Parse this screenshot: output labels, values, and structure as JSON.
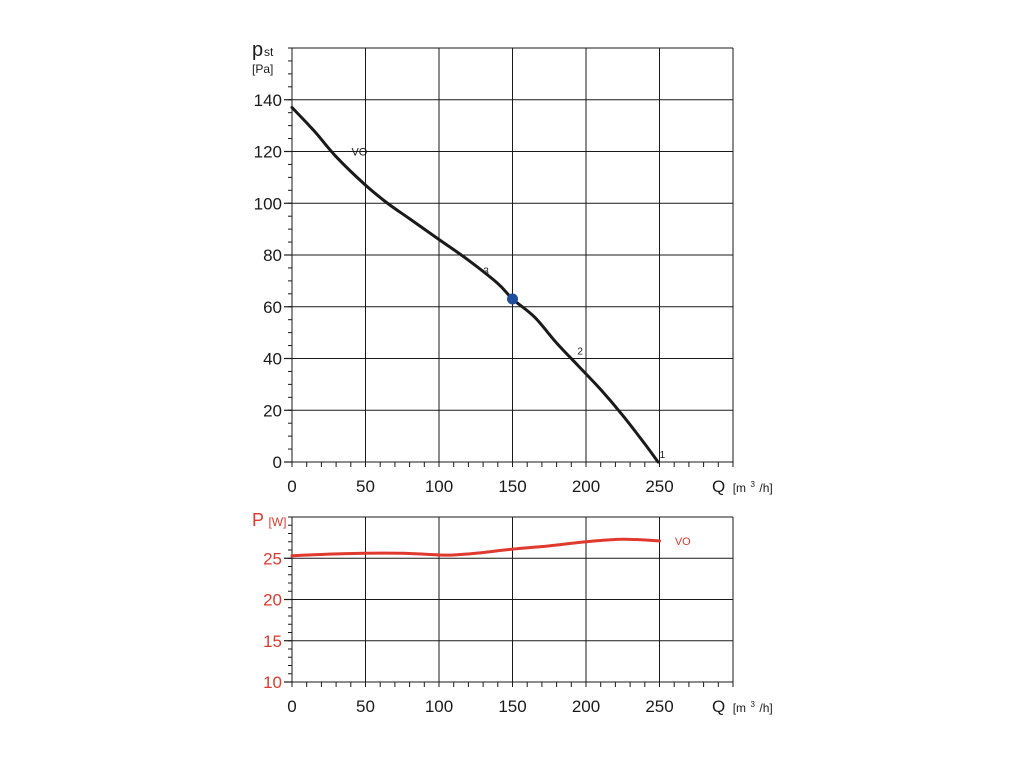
{
  "chart_data": [
    {
      "type": "line",
      "ylabel_symbol": "p",
      "ylabel_subscript": "st",
      "ylabel_unit": "[Pa]",
      "xlabel": "Q",
      "xlabel_unit_prefix": "[m",
      "xlabel_unit_sup": "3",
      "xlabel_unit_suffix": "/h]",
      "xlim": [
        0,
        300
      ],
      "ylim": [
        0,
        160
      ],
      "x_ticks": [
        "0",
        "50",
        "100",
        "150",
        "200",
        "250"
      ],
      "x_tick_values": [
        0,
        50,
        100,
        150,
        200,
        250
      ],
      "y_ticks": [
        "0",
        "20",
        "40",
        "60",
        "80",
        "100",
        "120",
        "140"
      ],
      "y_tick_values": [
        0,
        20,
        40,
        60,
        80,
        100,
        120,
        140
      ],
      "grid": true,
      "series": [
        {
          "name": "VO",
          "color": "#1a1a1a",
          "x": [
            0,
            15,
            30,
            50,
            65,
            80,
            100,
            120,
            140,
            150,
            165,
            180,
            195,
            210,
            225,
            240,
            249
          ],
          "y": [
            137,
            128,
            118,
            107,
            100,
            94,
            86,
            78,
            69,
            63,
            56,
            46,
            37,
            28,
            18,
            7,
            0
          ]
        }
      ],
      "annotations": [
        {
          "text": "VO",
          "x": 35,
          "y": 120
        },
        {
          "text": "3",
          "x": 132,
          "y": 74
        },
        {
          "text": "2",
          "x": 196,
          "y": 43
        },
        {
          "text": "1",
          "x": 252,
          "y": 3
        }
      ],
      "marker": {
        "x": 150,
        "y": 63,
        "color": "#1f4e9c"
      }
    },
    {
      "type": "line",
      "ylabel_symbol": "P",
      "ylabel_unit": "[W]",
      "ylabel_color": "#e03a2f",
      "xlabel": "Q",
      "xlabel_unit_prefix": "[m",
      "xlabel_unit_sup": "3",
      "xlabel_unit_suffix": "/h]",
      "xlim": [
        0,
        300
      ],
      "ylim": [
        10,
        30
      ],
      "x_ticks": [
        "0",
        "50",
        "100",
        "150",
        "200",
        "250"
      ],
      "x_tick_values": [
        0,
        50,
        100,
        150,
        200,
        250
      ],
      "y_ticks": [
        "10",
        "15",
        "20",
        "25"
      ],
      "y_tick_values": [
        10,
        15,
        20,
        25
      ],
      "tick_color": "#e03a2f",
      "grid": true,
      "series": [
        {
          "name": "VO",
          "color": "#e03a2f",
          "x": [
            0,
            25,
            50,
            75,
            100,
            110,
            125,
            150,
            175,
            200,
            225,
            250
          ],
          "y": [
            25.3,
            25.5,
            25.6,
            25.6,
            25.4,
            25.4,
            25.6,
            26.1,
            26.5,
            27.0,
            27.3,
            27.1
          ]
        }
      ],
      "annotations": [
        {
          "text": "VO",
          "x": 255,
          "y": 27.1
        }
      ]
    }
  ]
}
